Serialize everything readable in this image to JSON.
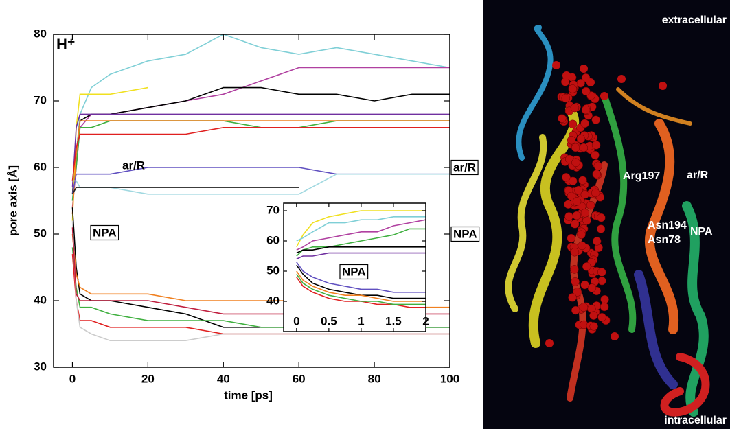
{
  "chart_data": [
    {
      "type": "line",
      "title": "H⁺",
      "xlabel": "time [ps]",
      "ylabel": "pore axis [Å]",
      "annotations": [
        "ar/R",
        "NPA",
        "ar/R",
        "NPA"
      ],
      "xlim": [
        -5,
        100
      ],
      "ylim": [
        30,
        80
      ],
      "xticks": [
        0,
        20,
        40,
        60,
        80,
        100
      ],
      "yticks": [
        30,
        40,
        50,
        60,
        70,
        80
      ],
      "x": [
        0,
        1,
        2,
        5,
        10,
        20,
        30,
        40,
        50,
        60,
        70,
        80,
        90,
        100
      ],
      "series": [
        {
          "color": "#7fcfd6",
          "values": [
            55,
            62,
            68,
            72,
            74,
            76,
            77,
            80,
            78,
            77,
            78,
            77,
            76,
            75
          ]
        },
        {
          "color": "#b040a0",
          "values": [
            54,
            60,
            66,
            68,
            68,
            69,
            70,
            71,
            73,
            75,
            75,
            75,
            75,
            75
          ]
        },
        {
          "color": "#000000",
          "values": [
            56,
            62,
            67,
            68,
            68,
            69,
            70,
            72,
            72,
            71,
            71,
            70,
            71,
            71
          ]
        },
        {
          "color": "#f0e020",
          "values": [
            52,
            66,
            71,
            71,
            71,
            72,
            null,
            null,
            null,
            null,
            null,
            null,
            null,
            null
          ]
        },
        {
          "color": "#7030a0",
          "values": [
            57,
            66,
            68,
            68,
            68,
            68,
            68,
            68,
            68,
            68,
            68,
            68,
            68,
            68
          ]
        },
        {
          "color": "#40b040",
          "values": [
            55,
            60,
            66,
            66,
            67,
            67,
            67,
            67,
            66,
            66,
            67,
            67,
            67,
            67
          ]
        },
        {
          "color": "#f08020",
          "values": [
            53,
            62,
            67,
            67,
            67,
            67,
            67,
            67,
            67,
            67,
            67,
            67,
            67,
            67
          ]
        },
        {
          "color": "#e02020",
          "values": [
            58,
            63,
            65,
            65,
            65,
            65,
            65,
            66,
            66,
            66,
            66,
            66,
            66,
            66
          ]
        },
        {
          "color": "#6050c0",
          "values": [
            56,
            59,
            59,
            59,
            59,
            60,
            60,
            60,
            60,
            60,
            59,
            59,
            59,
            59
          ]
        },
        {
          "color": "#a0d8e0",
          "values": [
            58,
            58,
            57,
            57,
            57,
            56,
            56,
            56,
            56,
            56,
            59,
            59,
            59,
            59
          ]
        },
        {
          "color": "#202020",
          "values": [
            56,
            57,
            57,
            57,
            57,
            57,
            57,
            57,
            57,
            57,
            null,
            null,
            null,
            null
          ]
        },
        {
          "color": "#000000",
          "values": [
            54,
            45,
            41,
            40,
            40,
            39,
            38,
            36,
            36,
            36,
            36,
            36,
            36,
            36
          ]
        },
        {
          "color": "#f08020",
          "values": [
            50,
            44,
            42,
            41,
            41,
            41,
            40,
            40,
            40,
            40,
            39,
            39,
            39,
            39
          ]
        },
        {
          "color": "#40b040",
          "values": [
            48,
            42,
            39,
            39,
            38,
            37,
            37,
            37,
            36,
            36,
            36,
            36,
            36,
            36
          ]
        },
        {
          "color": "#e02020",
          "values": [
            47,
            40,
            37,
            37,
            36,
            36,
            36,
            35,
            35,
            35,
            35,
            35,
            35,
            35
          ]
        },
        {
          "color": "#cccccc",
          "values": [
            52,
            40,
            36,
            35,
            34,
            34,
            34,
            35,
            35,
            35,
            35,
            35,
            35,
            35
          ]
        },
        {
          "color": "#c02040",
          "values": [
            51,
            41,
            40,
            40,
            40,
            40,
            39,
            38,
            38,
            38,
            38,
            38,
            38,
            38
          ]
        }
      ]
    },
    {
      "type": "line",
      "annotations": [
        "NPA"
      ],
      "xlim": [
        -0.2,
        2
      ],
      "ylim": [
        30,
        72.5
      ],
      "xticks": [
        0,
        0.5,
        1,
        1.5,
        2
      ],
      "yticks": [
        40,
        50,
        60,
        70
      ],
      "x": [
        0,
        0.1,
        0.25,
        0.5,
        0.75,
        1,
        1.25,
        1.5,
        1.75,
        2
      ],
      "series": [
        {
          "color": "#f0e020",
          "values": [
            58,
            62,
            66,
            68,
            69,
            70,
            70,
            70,
            70,
            70
          ]
        },
        {
          "color": "#7fcfd6",
          "values": [
            60,
            61,
            63,
            66,
            66,
            67,
            67,
            68,
            68,
            68
          ]
        },
        {
          "color": "#b040a0",
          "values": [
            57,
            58,
            60,
            61,
            62,
            63,
            63,
            65,
            66,
            67
          ]
        },
        {
          "color": "#40b040",
          "values": [
            55,
            57,
            58,
            58,
            59,
            60,
            61,
            62,
            64,
            64
          ]
        },
        {
          "color": "#000000",
          "values": [
            56,
            57,
            57,
            58,
            58,
            58,
            58,
            58,
            58,
            58
          ]
        },
        {
          "color": "#7030a0",
          "values": [
            54,
            55,
            55,
            56,
            56,
            56,
            56,
            56,
            56,
            56
          ]
        },
        {
          "color": "#000000",
          "values": [
            52,
            49,
            46,
            44,
            43,
            42,
            42,
            41,
            41,
            41
          ]
        },
        {
          "color": "#f08020",
          "values": [
            50,
            47,
            45,
            43,
            42,
            42,
            41,
            40,
            40,
            40
          ]
        },
        {
          "color": "#e02020",
          "values": [
            48,
            45,
            43,
            41,
            40,
            40,
            39,
            39,
            38,
            38
          ]
        },
        {
          "color": "#40b040",
          "values": [
            49,
            46,
            44,
            42,
            41,
            40,
            40,
            39,
            39,
            39
          ]
        },
        {
          "color": "#6050c0",
          "values": [
            53,
            50,
            48,
            46,
            45,
            44,
            44,
            43,
            43,
            43
          ]
        }
      ]
    }
  ],
  "image_labels": [
    "extracellular",
    "intracellular",
    "ar/R",
    "NPA",
    "Arg197",
    "Asn194",
    "Asn78"
  ]
}
